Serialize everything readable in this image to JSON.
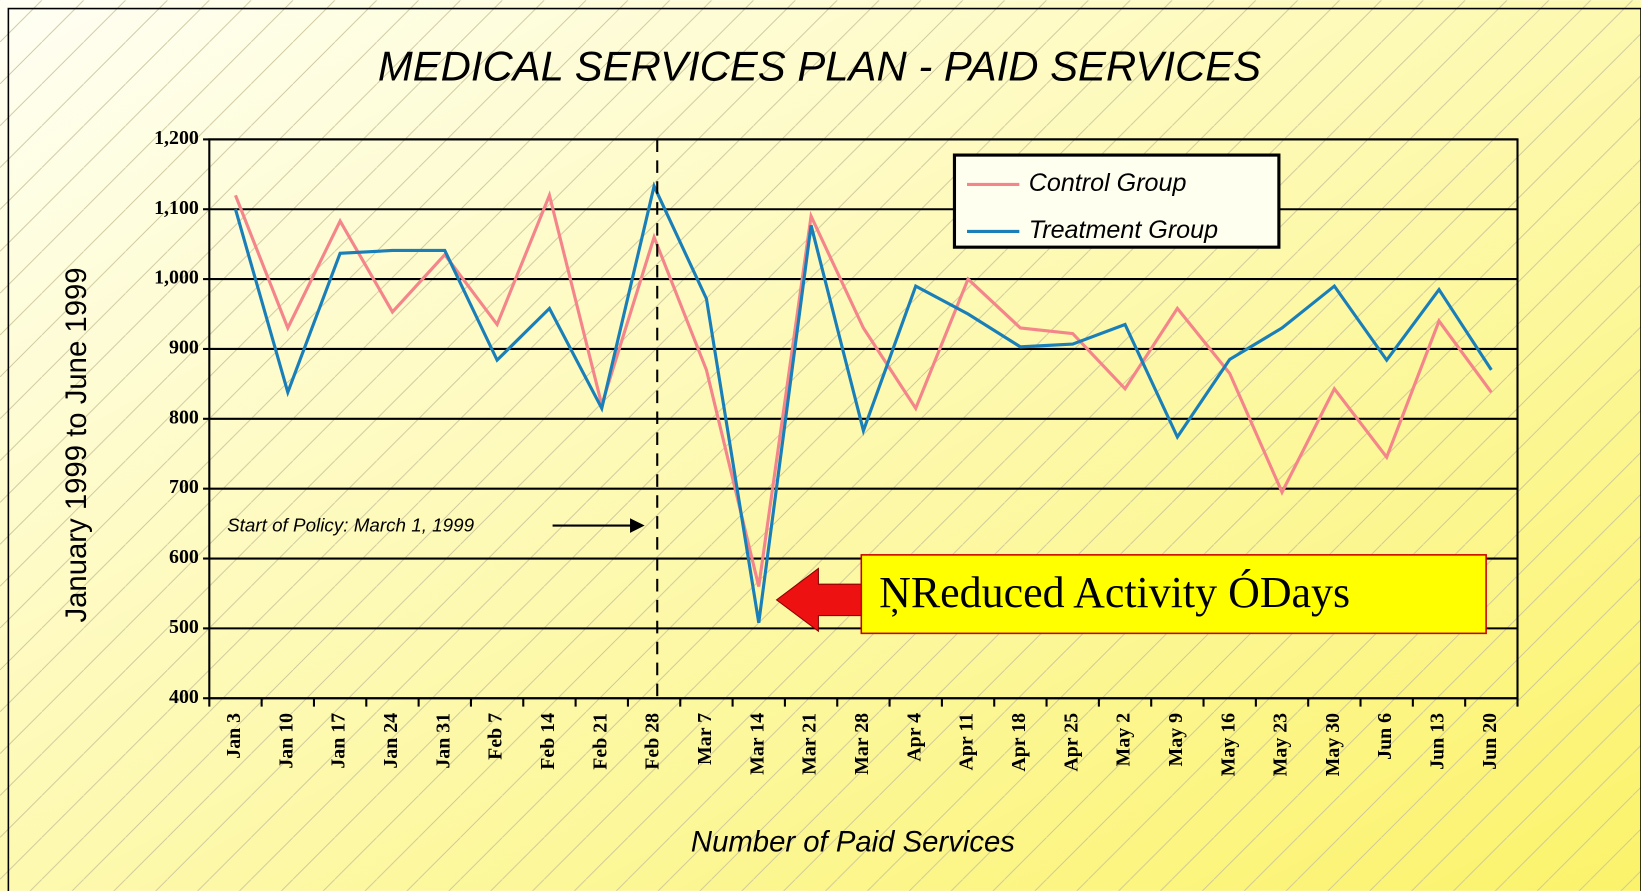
{
  "chart_data": {
    "type": "line",
    "title": "MEDICAL SERVICES PLAN - PAID SERVICES",
    "x_label": "Number of Paid Services",
    "y_label": "January 1999 to June 1999",
    "categories": [
      "Jan 3",
      "Jan 10",
      "Jan 17",
      "Jan 24",
      "Jan 31",
      "Feb 7",
      "Feb 14",
      "Feb 21",
      "Feb 28",
      "Mar 7",
      "Mar 14",
      "Mar 21",
      "Mar 28",
      "Apr 4",
      "Apr 11",
      "Apr 18",
      "Apr 25",
      "May 2",
      "May 9",
      "May 16",
      "May 23",
      "May 30",
      "Jun 6",
      "Jun 13",
      "Jun 20"
    ],
    "series": [
      {
        "name": "Control Group",
        "color": "#f4858a",
        "values": [
          1120,
          930,
          1083,
          953,
          1035,
          935,
          1120,
          820,
          1060,
          870,
          560,
          1090,
          930,
          815,
          1000,
          930,
          922,
          843,
          958,
          865,
          695,
          843,
          745,
          940,
          838
        ]
      },
      {
        "name": "Treatment Group",
        "color": "#1a7fb8",
        "values": [
          1100,
          838,
          1037,
          1041,
          1041,
          884,
          958,
          815,
          1133,
          972,
          508,
          1077,
          783,
          990,
          950,
          903,
          907,
          935,
          774,
          885,
          930,
          990,
          884,
          985,
          870
        ]
      }
    ],
    "ylim": [
      400,
      1200
    ],
    "yticks": [
      400,
      500,
      600,
      700,
      800,
      900,
      {
        "value": 1000,
        "label": "1,000"
      },
      {
        "value": 1100,
        "label": "1,100"
      },
      {
        "value": 1200,
        "label": "1,200"
      }
    ],
    "grid": true,
    "legend": "upper right",
    "annotations": [
      "Start of Policy:  March 1, 1999",
      "ŅReduced Activity    ÓDays"
    ]
  }
}
